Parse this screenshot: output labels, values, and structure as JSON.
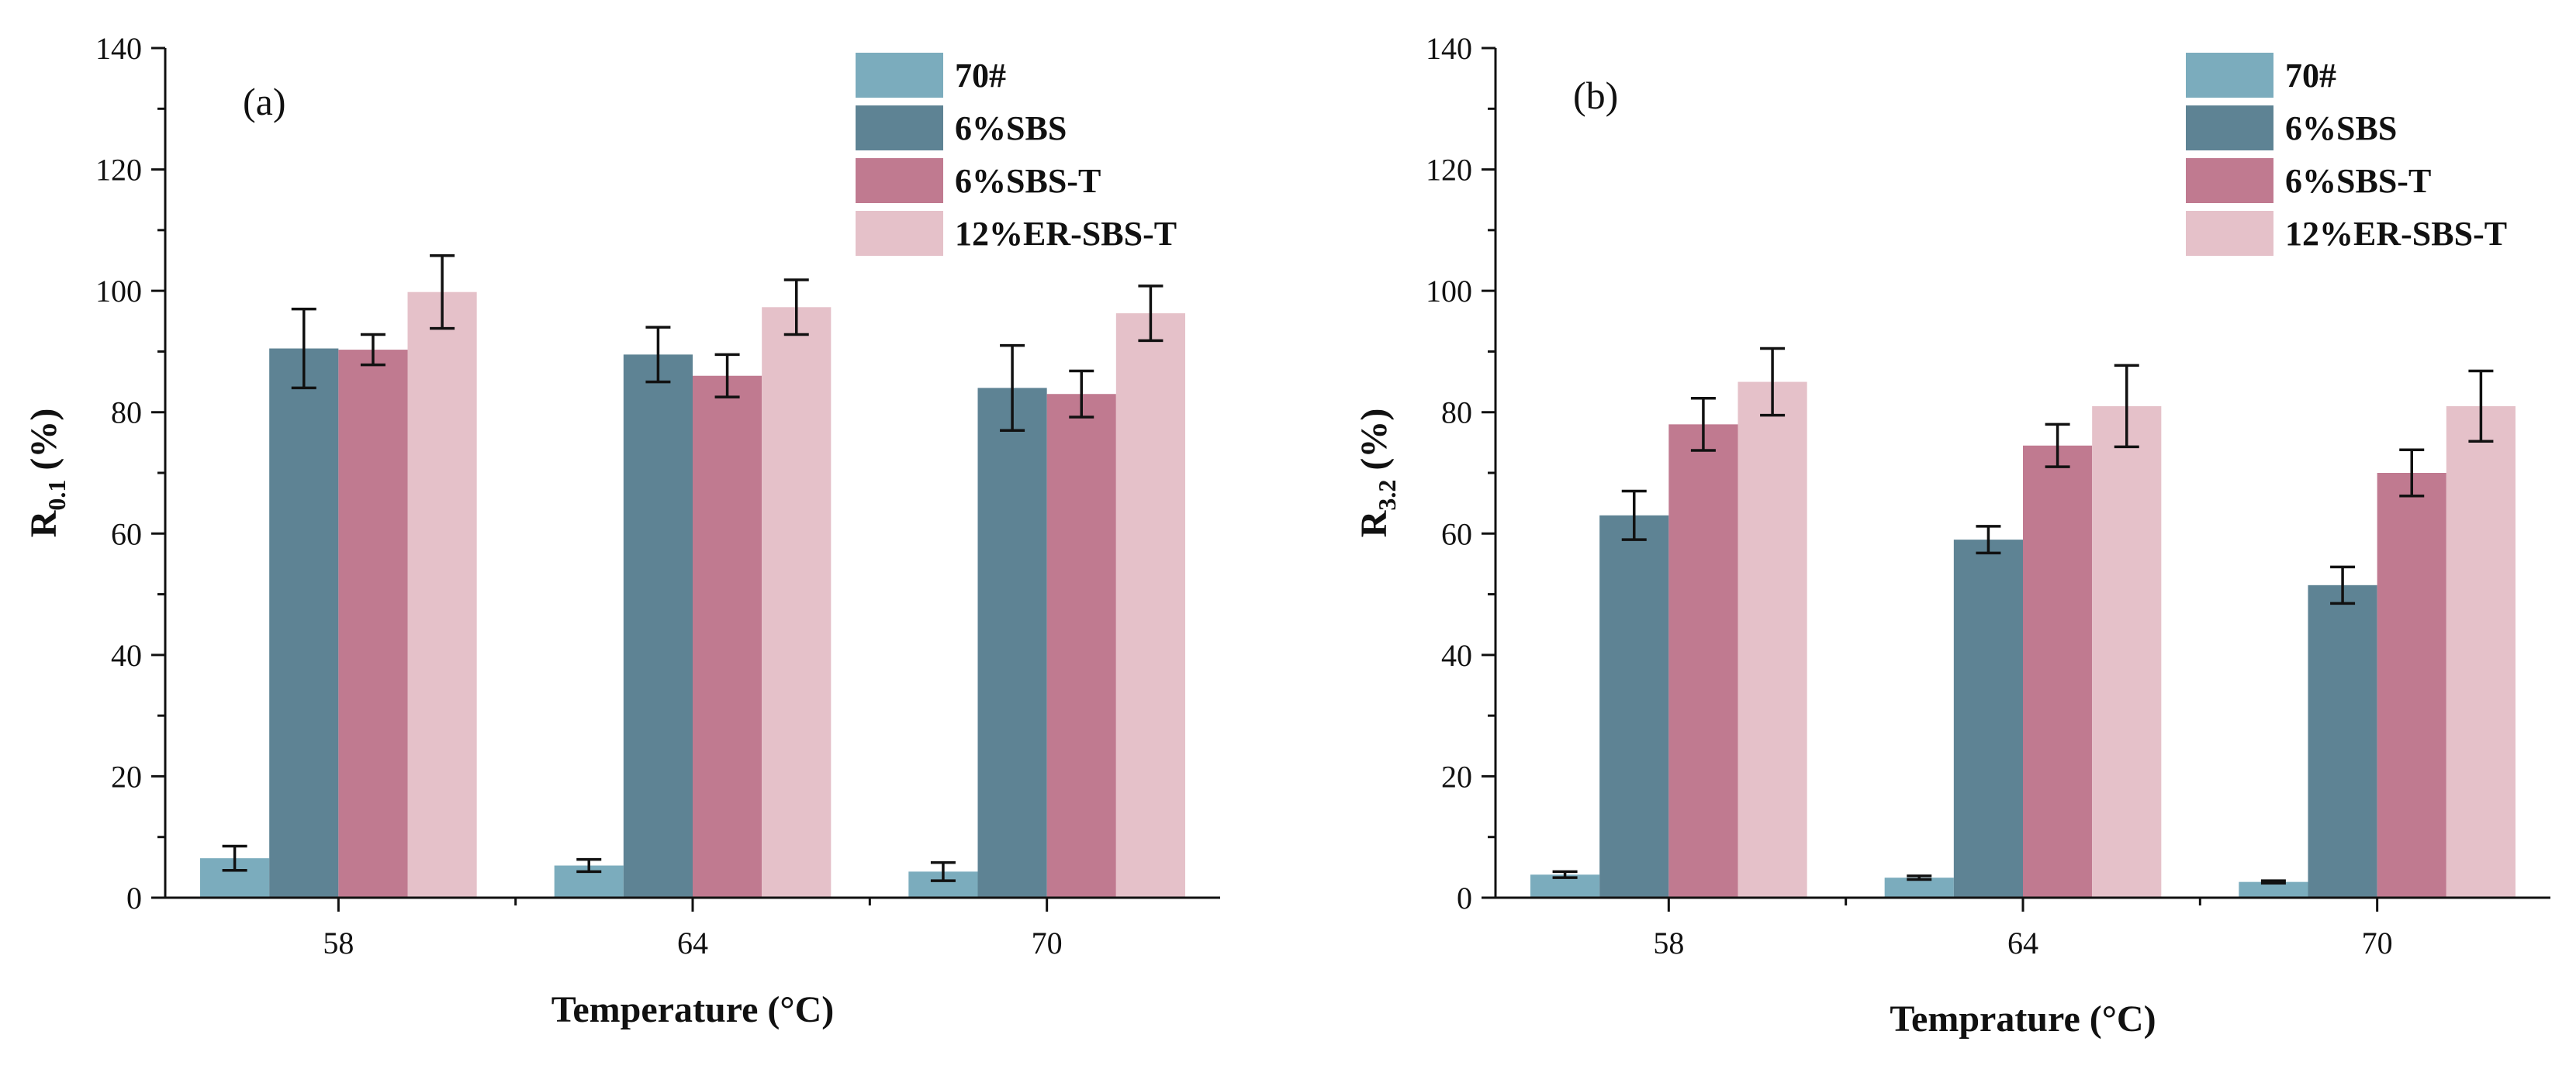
{
  "chart_data": [
    {
      "type": "bar",
      "panel_label": "(a)",
      "xlabel": "Temperature (°C)",
      "ylabel_main": "R",
      "ylabel_sub": "0.1",
      "ylabel_unit": " (%)",
      "categories": [
        "58",
        "64",
        "70"
      ],
      "ylim": [
        0,
        140
      ],
      "yticks": [
        "0",
        "20",
        "40",
        "60",
        "80",
        "100",
        "120",
        "140"
      ],
      "legend_position": "top-right",
      "series": [
        {
          "name": "70#",
          "color": "#7bacbd",
          "values": [
            6.5,
            5.3,
            4.3
          ],
          "errors": [
            2.0,
            1.0,
            1.5
          ]
        },
        {
          "name": "6%SBS",
          "color": "#5e8394",
          "values": [
            90.5,
            89.5,
            84.0
          ],
          "errors": [
            6.5,
            4.5,
            7.0
          ]
        },
        {
          "name": "6%SBS-T",
          "color": "#c07a90",
          "values": [
            90.3,
            86.0,
            83.0
          ],
          "errors": [
            2.5,
            3.5,
            3.8
          ]
        },
        {
          "name": "12%ER-SBS-T",
          "color": "#e5c1c9",
          "values": [
            99.8,
            97.3,
            96.3
          ],
          "errors": [
            6.0,
            4.5,
            4.5
          ]
        }
      ]
    },
    {
      "type": "bar",
      "panel_label": "(b)",
      "xlabel": "Temprature (°C)",
      "ylabel_main": "R",
      "ylabel_sub": "3.2",
      "ylabel_unit": " (%)",
      "categories": [
        "58",
        "64",
        "70"
      ],
      "ylim": [
        0,
        140
      ],
      "yticks": [
        "0",
        "20",
        "40",
        "60",
        "80",
        "100",
        "120",
        "140"
      ],
      "legend_position": "top-right",
      "series": [
        {
          "name": "70#",
          "color": "#7bacbd",
          "values": [
            3.8,
            3.3,
            2.6
          ],
          "errors": [
            0.5,
            0.3,
            0.2
          ]
        },
        {
          "name": "6%SBS",
          "color": "#5e8394",
          "values": [
            63.0,
            59.0,
            51.5
          ],
          "errors": [
            4.0,
            2.2,
            3.0
          ]
        },
        {
          "name": "6%SBS-T",
          "color": "#c07a90",
          "values": [
            78.0,
            74.5,
            70.0
          ],
          "errors": [
            4.3,
            3.5,
            3.8
          ]
        },
        {
          "name": "12%ER-SBS-T",
          "color": "#e5c1c9",
          "values": [
            85.0,
            81.0,
            81.0
          ],
          "errors": [
            5.5,
            6.7,
            5.8
          ]
        }
      ]
    }
  ]
}
